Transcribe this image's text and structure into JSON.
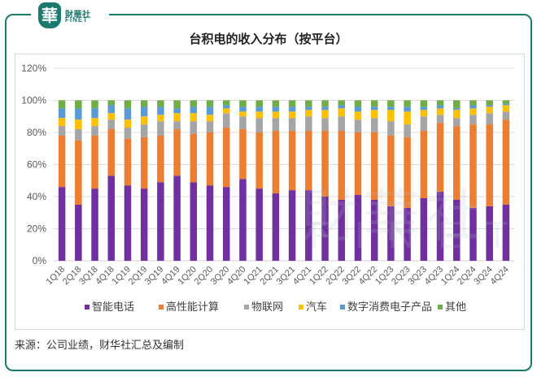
{
  "brand": {
    "logo_char": "華",
    "name_cn": "財華社",
    "name_en": "FINET"
  },
  "footer": {
    "source": "来源：公司业绩，财华社汇总及编制"
  },
  "watermark": {
    "cn": "財華社",
    "en": "FINET"
  },
  "chart_data": {
    "type": "bar",
    "stacked": true,
    "title": "台积电的收入分布（按平台）",
    "xlabel": "",
    "ylabel": "",
    "ylim": [
      0,
      1.2
    ],
    "yticks": [
      0,
      0.2,
      0.4,
      0.6,
      0.8,
      1.0,
      1.2
    ],
    "ytick_labels": [
      "0%",
      "20%",
      "40%",
      "60%",
      "80%",
      "100%",
      "120%"
    ],
    "grid": true,
    "legend_position": "bottom",
    "categories": [
      "1Q18",
      "2Q18",
      "3Q18",
      "4Q18",
      "1Q19",
      "2Q19",
      "3Q19",
      "4Q19",
      "1Q20",
      "2Q20",
      "3Q20",
      "4Q20",
      "1Q21",
      "2Q21",
      "3Q21",
      "4Q21",
      "1Q22",
      "2Q22",
      "3Q22",
      "4Q22",
      "1Q23",
      "2Q23",
      "3Q23",
      "4Q23",
      "1Q24",
      "2Q24",
      "3Q24",
      "4Q24"
    ],
    "series": [
      {
        "name": "智能电话",
        "color": "#7030a0",
        "values": [
          46,
          35,
          45,
          53,
          47,
          45,
          49,
          53,
          49,
          47,
          46,
          51,
          45,
          42,
          44,
          44,
          40,
          38,
          41,
          38,
          34,
          33,
          39,
          43,
          38,
          33,
          34,
          35
        ]
      },
      {
        "name": "高性能计算",
        "color": "#ed7d31",
        "values": [
          32,
          40,
          33,
          29,
          29,
          32,
          29,
          29,
          30,
          33,
          37,
          31,
          35,
          39,
          37,
          37,
          41,
          43,
          39,
          42,
          44,
          44,
          42,
          43,
          46,
          52,
          51,
          53
        ]
      },
      {
        "name": "物联网",
        "color": "#a5a5a5",
        "values": [
          6,
          7,
          6,
          6,
          7,
          8,
          9,
          5,
          8,
          7,
          9,
          8,
          9,
          8,
          8,
          9,
          8,
          9,
          8,
          9,
          9,
          8,
          9,
          5,
          5,
          6,
          7,
          5
        ]
      },
      {
        "name": "汽车",
        "color": "#ffc000",
        "values": [
          5,
          6,
          5,
          4,
          5,
          5,
          4,
          5,
          5,
          4,
          3,
          3,
          4,
          4,
          4,
          4,
          5,
          5,
          5,
          5,
          7,
          8,
          4,
          4,
          5,
          4,
          4,
          4
        ]
      },
      {
        "name": "数字消费电子产品",
        "color": "#5b9bd5",
        "values": [
          6,
          7,
          6,
          5,
          7,
          6,
          5,
          3,
          4,
          5,
          2,
          3,
          3,
          3,
          3,
          2,
          2,
          2,
          3,
          2,
          2,
          3,
          2,
          2,
          1,
          2,
          1,
          1
        ]
      },
      {
        "name": "其他",
        "color": "#70ad47",
        "values": [
          5,
          5,
          5,
          3,
          5,
          4,
          4,
          5,
          4,
          4,
          3,
          4,
          4,
          4,
          4,
          4,
          4,
          3,
          4,
          4,
          4,
          4,
          4,
          3,
          5,
          3,
          3,
          2
        ]
      }
    ],
    "value_unit": "percent"
  }
}
